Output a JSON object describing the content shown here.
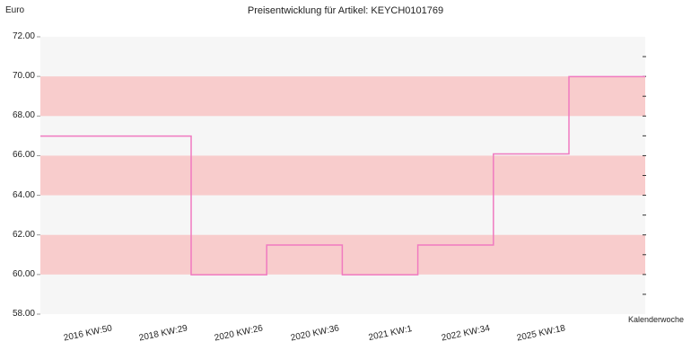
{
  "chart_data": {
    "type": "line",
    "step": true,
    "title": "Preisentwicklung für Artikel: KEYCH0101769",
    "ylabel": "Euro",
    "xlabel": "Kalenderwoche",
    "ylim": [
      58.0,
      72.0
    ],
    "yticks": [
      "58.00",
      "60.00",
      "62.00",
      "64.00",
      "66.00",
      "68.00",
      "70.00",
      "72.00"
    ],
    "categories": [
      "2016 KW:50",
      "2018 KW:29",
      "2020 KW:26",
      "2020 KW:36",
      "2021 KW:1",
      "2022 KW:34",
      "2025 KW:18"
    ],
    "series": [
      {
        "values": [
          66.99,
          59.99,
          61.49,
          59.99,
          61.49,
          66.09,
          69.99
        ]
      }
    ],
    "colors": {
      "line": "#f07ac0",
      "band": "#f8cccc",
      "background": "#f6f6f6",
      "grid": "#ffffff"
    },
    "grid": true
  }
}
